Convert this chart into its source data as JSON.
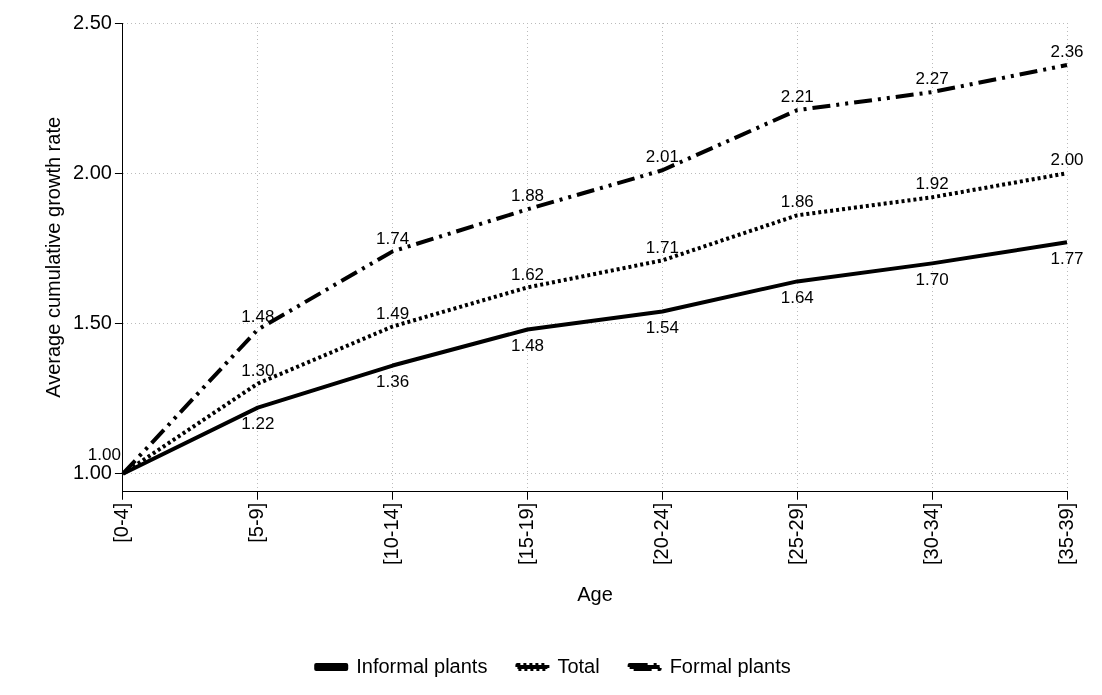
{
  "chart_data": {
    "type": "line",
    "xlabel": "Age",
    "ylabel": "Average cumulative growth rate",
    "categories": [
      "[0-4]",
      "[5-9]",
      "[10-14]",
      "[15-19]",
      "[20-24]",
      "[25-29]",
      "[30-34]",
      "[35-39]"
    ],
    "series": [
      {
        "name": "Informal plants",
        "color": "#000000",
        "line_style": "solid",
        "values": [
          1.0,
          1.22,
          1.36,
          1.48,
          1.54,
          1.64,
          1.7,
          1.77
        ],
        "value_labels": [
          "1.00",
          "1.22",
          "1.36",
          "1.48",
          "1.54",
          "1.64",
          "1.70",
          "1.77"
        ]
      },
      {
        "name": "Total",
        "color": "#000000",
        "line_style": "dotted",
        "values": [
          1.0,
          1.3,
          1.49,
          1.62,
          1.71,
          1.86,
          1.92,
          2.0
        ],
        "value_labels": [
          null,
          "1.30",
          "1.49",
          "1.62",
          "1.71",
          "1.86",
          "1.92",
          "2.00"
        ]
      },
      {
        "name": "Formal plants",
        "color": "#000000",
        "line_style": "dashed",
        "values": [
          1.0,
          1.48,
          1.74,
          1.88,
          2.01,
          2.21,
          2.27,
          2.36
        ],
        "value_labels": [
          null,
          "1.48",
          "1.74",
          "1.88",
          "2.01",
          "2.21",
          "2.27",
          "2.36"
        ]
      }
    ],
    "ylim": [
      0.94,
      2.5
    ],
    "yticks": [
      {
        "value": 1,
        "label": "1.00"
      },
      {
        "value": 1.5,
        "label": "1.50"
      },
      {
        "value": 2,
        "label": "2.00"
      },
      {
        "value": 2.5,
        "label": "2.50"
      }
    ],
    "grid": true,
    "legend": "bottom",
    "marker": "none"
  }
}
